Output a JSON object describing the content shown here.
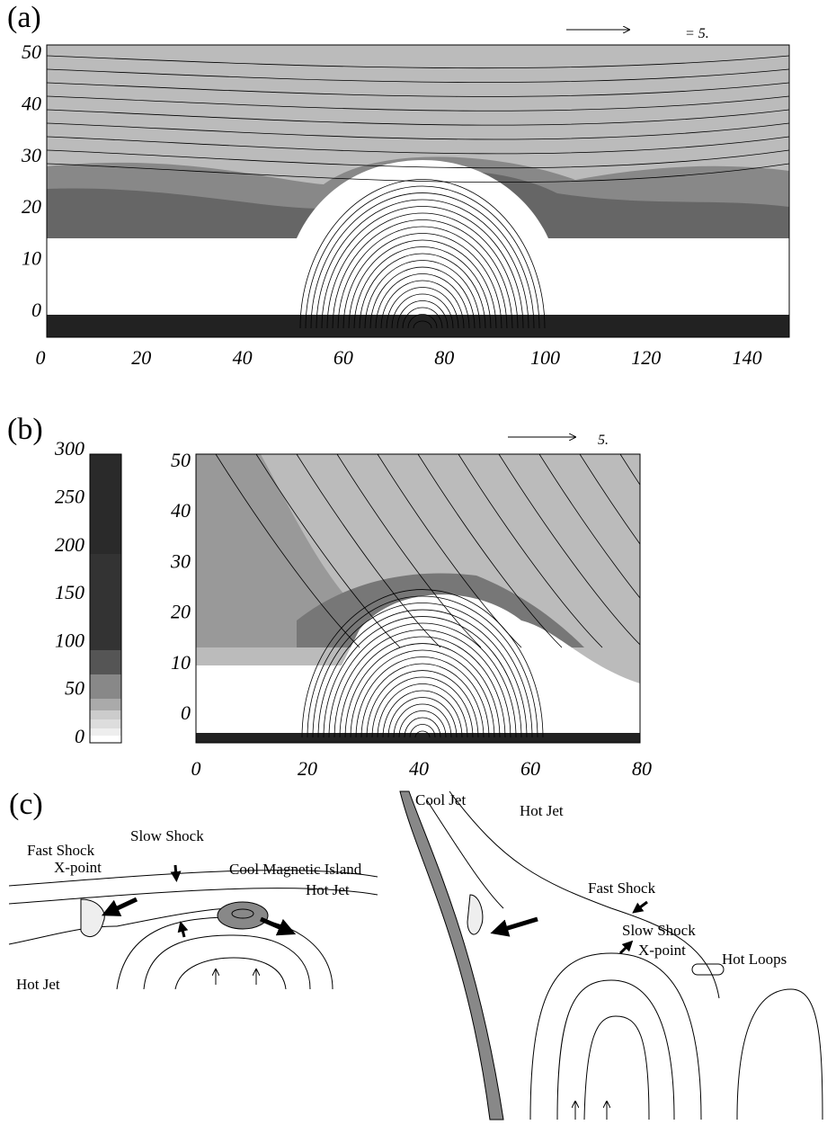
{
  "panels": [
    {
      "label": "(a)",
      "scale_label": "= 5.",
      "xticks": [
        "0",
        "20",
        "40",
        "60",
        "80",
        "100",
        "120",
        "140"
      ],
      "yticks": [
        "0",
        "10",
        "20",
        "30",
        "40",
        "50"
      ]
    },
    {
      "label": "(b)",
      "scale_label": "5.",
      "xticks": [
        "0",
        "20",
        "40",
        "60",
        "80"
      ],
      "yticks": [
        "0",
        "10",
        "20",
        "30",
        "40",
        "50"
      ],
      "colorbar": [
        "0",
        "50",
        "100",
        "150",
        "200",
        "250",
        "300"
      ]
    },
    {
      "label": "(c)",
      "left": [
        "Fast Shock",
        "Slow Shock",
        "X-point",
        "Cool Magnetic Island",
        "Hot Jet",
        "Hot Jet"
      ],
      "right": [
        "Cool Jet",
        "Hot Jet",
        "Fast Shock",
        "Slow Shock",
        "X-point",
        "Hot Loops"
      ]
    }
  ]
}
